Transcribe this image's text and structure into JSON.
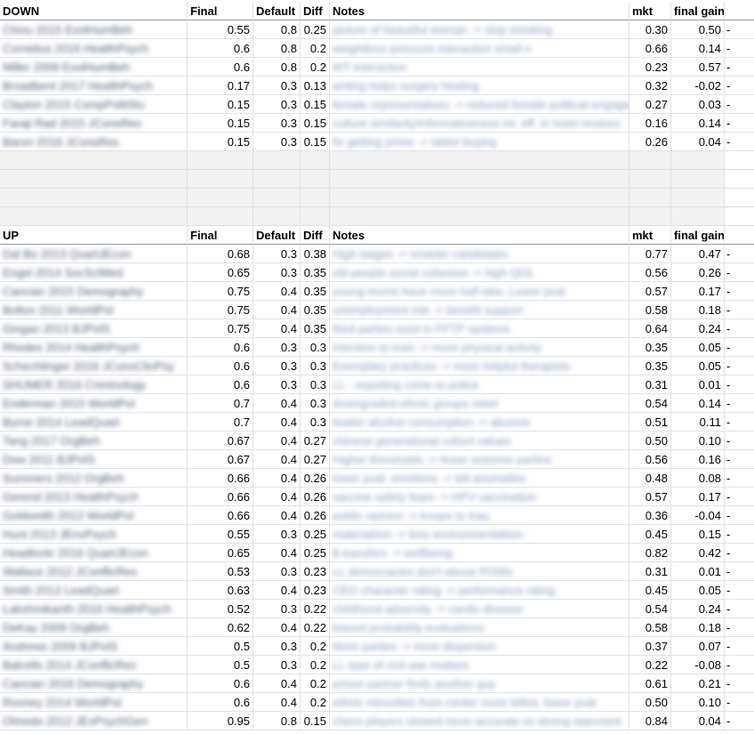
{
  "down": {
    "header": {
      "name": "DOWN",
      "final": "Final",
      "default": "Default",
      "diff": "Diff",
      "notes": "Notes",
      "mkt": "mkt",
      "gain": "final gain"
    },
    "rows": [
      {
        "name": "Chiou 2015 EvolHumBeh",
        "final": "0.55",
        "default": "0.8",
        "diff": "0.25",
        "notes": "picture of beautiful woman -> stop smoking",
        "mkt": "0.30",
        "gain": "0.50",
        "dash": "-"
      },
      {
        "name": "Cornelius 2016 HealthPsych",
        "final": "0.6",
        "default": "0.8",
        "diff": "0.2",
        "notes": "weightloss pressure interaction small n",
        "mkt": "0.66",
        "gain": "0.14",
        "dash": "-"
      },
      {
        "name": "Miller 2009 EvolHumBeh",
        "final": "0.6",
        "default": "0.8",
        "diff": "0.2",
        "notes": "WT interaction",
        "mkt": "0.23",
        "gain": "0.57",
        "dash": "-"
      },
      {
        "name": "Broadbent 2017 HealthPsych",
        "final": "0.17",
        "default": "0.3",
        "diff": "0.13",
        "notes": "writing helps surgery healing",
        "mkt": "0.32",
        "gain": "-0.02",
        "dash": "-"
      },
      {
        "name": "Clayton 2015 CompPolitStu",
        "final": "0.15",
        "default": "0.3",
        "diff": "0.15",
        "notes": "female representatives -> reduced female political engagement",
        "mkt": "0.27",
        "gain": "0.03",
        "dash": "-"
      },
      {
        "name": "Faraji Rad 2015 JConsRes",
        "final": "0.15",
        "default": "0.3",
        "diff": "0.15",
        "notes": "culture similarity/informativeness int. eff. in hotel reviews",
        "mkt": "0.16",
        "gain": "0.14",
        "dash": "-"
      },
      {
        "name": "Baron 2016 JConsRes",
        "final": "0.15",
        "default": "0.3",
        "diff": "0.15",
        "notes": "fix getting prime -> tablet buying",
        "mkt": "0.26",
        "gain": "0.04",
        "dash": "-"
      }
    ]
  },
  "up": {
    "header": {
      "name": "UP",
      "final": "Final",
      "default": "Default",
      "diff": "Diff",
      "notes": "Notes",
      "mkt": "mkt",
      "gain": "final gain"
    },
    "rows": [
      {
        "name": "Dal Bo 2013 QuartJEcon",
        "final": "0.68",
        "default": "0.3",
        "diff": "0.38",
        "notes": "High wages -> smarter candidates",
        "mkt": "0.77",
        "gain": "0.47",
        "dash": "-"
      },
      {
        "name": "Engel 2014 SocSciMed",
        "final": "0.65",
        "default": "0.3",
        "diff": "0.35",
        "notes": "old people social cohesion -> high QOL",
        "mkt": "0.56",
        "gain": "0.26",
        "dash": "-"
      },
      {
        "name": "Cancian 2015 Demography",
        "final": "0.75",
        "default": "0.4",
        "diff": "0.35",
        "notes": "young moms have more half-sibs. Lower pval",
        "mkt": "0.57",
        "gain": "0.17",
        "dash": "-"
      },
      {
        "name": "Bolton 2011 WorldPol",
        "final": "0.75",
        "default": "0.4",
        "diff": "0.35",
        "notes": "unemployment risk -> benefit support",
        "mkt": "0.58",
        "gain": "0.18",
        "dash": "-"
      },
      {
        "name": "Gingan 2013 BJPolS",
        "final": "0.75",
        "default": "0.4",
        "diff": "0.35",
        "notes": "third parties exist in FPTP systems",
        "mkt": "0.64",
        "gain": "0.24",
        "dash": "-"
      },
      {
        "name": "Rhodes 2014 HealthPsych",
        "final": "0.6",
        "default": "0.3",
        "diff": "0.3",
        "notes": "intention to train -> more physical activity",
        "mkt": "0.35",
        "gain": "0.05",
        "dash": "-"
      },
      {
        "name": "Schechtinger 2016 JConsClinPsy",
        "final": "0.6",
        "default": "0.3",
        "diff": "0.3",
        "notes": "Exemplary practices -> more helpful therapists",
        "mkt": "0.35",
        "gain": "0.05",
        "dash": "-"
      },
      {
        "name": "SHUMER 2016 Criminology",
        "final": "0.6",
        "default": "0.3",
        "diff": "0.3",
        "notes": "LL - reporting crime to police",
        "mkt": "0.31",
        "gain": "0.01",
        "dash": "-"
      },
      {
        "name": "Enderman 2015 WorldPol",
        "final": "0.7",
        "default": "0.4",
        "diff": "0.3",
        "notes": "downgraded ethnic groups rebel",
        "mkt": "0.54",
        "gain": "0.14",
        "dash": "-"
      },
      {
        "name": "Byrne 2014 LeadQuart",
        "final": "0.7",
        "default": "0.4",
        "diff": "0.3",
        "notes": "leader alcohol consumption -> abusive",
        "mkt": "0.51",
        "gain": "0.11",
        "dash": "-"
      },
      {
        "name": "Tang 2017 OrgBeh",
        "final": "0.67",
        "default": "0.4",
        "diff": "0.27",
        "notes": "chinese generational cohort values",
        "mkt": "0.50",
        "gain": "0.10",
        "dash": "-"
      },
      {
        "name": "Dow 2011 BJPolS",
        "final": "0.67",
        "default": "0.4",
        "diff": "0.27",
        "notes": "Higher thresholds -> fewer extreme parties",
        "mkt": "0.56",
        "gain": "0.16",
        "dash": "-"
      },
      {
        "name": "Summers 2012 OrgBeh",
        "final": "0.66",
        "default": "0.4",
        "diff": "0.26",
        "notes": "lower pval. emotions -> tell anomalies",
        "mkt": "0.48",
        "gain": "0.08",
        "dash": "-"
      },
      {
        "name": "Gerend 2013 HealthPsych",
        "final": "0.66",
        "default": "0.4",
        "diff": "0.26",
        "notes": "vaccine safety fears -> HPV vaccination",
        "mkt": "0.57",
        "gain": "0.17",
        "dash": "-"
      },
      {
        "name": "Goldsmith 2012 WorldPol",
        "final": "0.66",
        "default": "0.4",
        "diff": "0.26",
        "notes": "public opinion -> troops to Iraq",
        "mkt": "0.36",
        "gain": "-0.04",
        "dash": "-"
      },
      {
        "name": "Hunt 2013 JEnvPsych",
        "final": "0.55",
        "default": "0.3",
        "diff": "0.25",
        "notes": "materialism -> less environmentalism",
        "mkt": "0.45",
        "gain": "0.15",
        "dash": "-"
      },
      {
        "name": "Headlockr 2016 QuartJEcon",
        "final": "0.65",
        "default": "0.4",
        "diff": "0.25",
        "notes": "$ transfers -> wellbeing",
        "mkt": "0.82",
        "gain": "0.42",
        "dash": "-"
      },
      {
        "name": "Wallace 2012 JConflicRes",
        "final": "0.53",
        "default": "0.3",
        "diff": "0.23",
        "notes": "LL democracies don't abuse POWs",
        "mkt": "0.31",
        "gain": "0.01",
        "dash": "-"
      },
      {
        "name": "Smith 2012 LeadQuart",
        "final": "0.63",
        "default": "0.4",
        "diff": "0.23",
        "notes": "CEO character rating -> performance rating",
        "mkt": "0.45",
        "gain": "0.05",
        "dash": "-"
      },
      {
        "name": "Lakshmikanth 2016 HealthPsych",
        "final": "0.52",
        "default": "0.3",
        "diff": "0.22",
        "notes": "childhood adversity -> cardio disease",
        "mkt": "0.54",
        "gain": "0.24",
        "dash": "-"
      },
      {
        "name": "DeKay 2009 OrgBeh",
        "final": "0.62",
        "default": "0.4",
        "diff": "0.22",
        "notes": "biased probability evaluations",
        "mkt": "0.58",
        "gain": "0.18",
        "dash": "-"
      },
      {
        "name": "Andrews 2009 BJPolS",
        "final": "0.5",
        "default": "0.3",
        "diff": "0.2",
        "notes": "More parties -> more dispersion",
        "mkt": "0.37",
        "gain": "0.07",
        "dash": "-"
      },
      {
        "name": "Balcells 2014 JConflicRes",
        "final": "0.5",
        "default": "0.3",
        "diff": "0.2",
        "notes": "LL type of civil war matters",
        "mkt": "0.22",
        "gain": "-0.08",
        "dash": "-"
      },
      {
        "name": "Cancian 2016 Demography",
        "final": "0.6",
        "default": "0.4",
        "diff": "0.2",
        "notes": "prison partner finds another guy",
        "mkt": "0.61",
        "gain": "0.21",
        "dash": "-"
      },
      {
        "name": "Rooney 2014 WorldPol",
        "final": "0.6",
        "default": "0.4",
        "diff": "0.2",
        "notes": "ethnic minorities from center more leftist, lower pval",
        "mkt": "0.50",
        "gain": "0.10",
        "dash": "-"
      },
      {
        "name": "Olmedo 2012 JExPsychGen",
        "final": "0.95",
        "default": "0.8",
        "diff": "0.15",
        "notes": "chess players slowed more accurate vs strong opponent",
        "mkt": "0.84",
        "gain": "0.04",
        "dash": "-"
      }
    ]
  }
}
